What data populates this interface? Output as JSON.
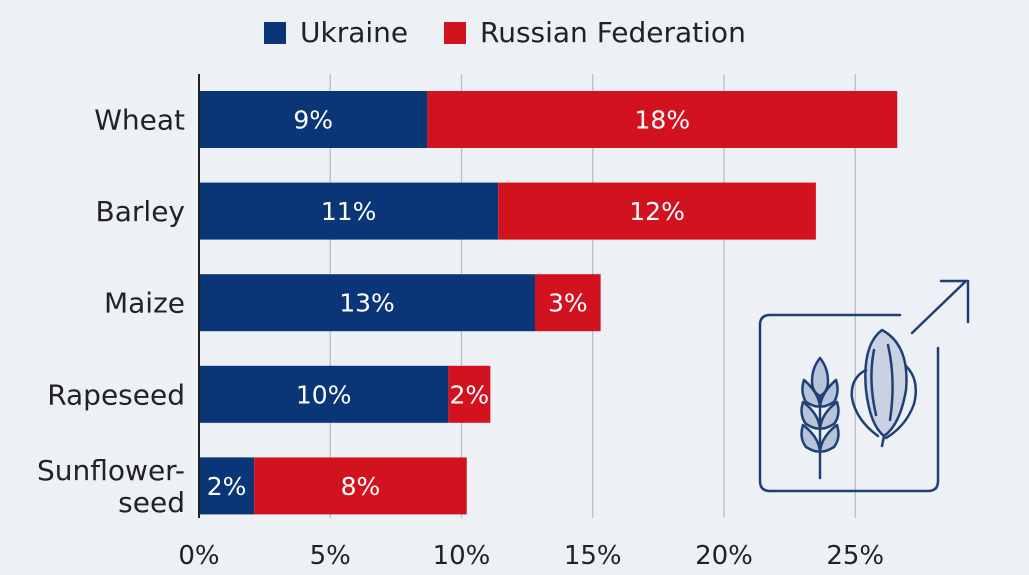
{
  "chart_data": {
    "type": "bar",
    "orientation": "horizontal",
    "stacked": true,
    "categories": [
      "Wheat",
      "Barley",
      "Maize",
      "Rapeseed",
      "Sunflower-seed"
    ],
    "category_lines": [
      [
        "Wheat"
      ],
      [
        "Barley"
      ],
      [
        "Maize"
      ],
      [
        "Rapeseed"
      ],
      [
        "Sunflower-",
        "seed"
      ]
    ],
    "series": [
      {
        "name": "Ukraine",
        "color": "#0a3677",
        "values": [
          8.7,
          11.4,
          12.8,
          9.5,
          2.1
        ],
        "labels": [
          "9%",
          "11%",
          "13%",
          "10%",
          "2%"
        ]
      },
      {
        "name": "Russian Federation",
        "color": "#d3121f",
        "values": [
          17.9,
          12.1,
          2.5,
          1.6,
          8.1
        ],
        "labels": [
          "18%",
          "12%",
          "3%",
          "2%",
          "8%"
        ]
      }
    ],
    "x_ticks": [
      0,
      5,
      10,
      15,
      20,
      25
    ],
    "x_tick_labels": [
      "0%",
      "5%",
      "10%",
      "15%",
      "20%",
      "25%"
    ],
    "xlim": [
      0,
      30
    ],
    "grid": "vertical",
    "legend_position": "top-center",
    "title": "",
    "xlabel": "",
    "ylabel": ""
  },
  "decoration": {
    "icon": "grain-wheat-corn-icon",
    "icon_color": "#1f3f75"
  }
}
